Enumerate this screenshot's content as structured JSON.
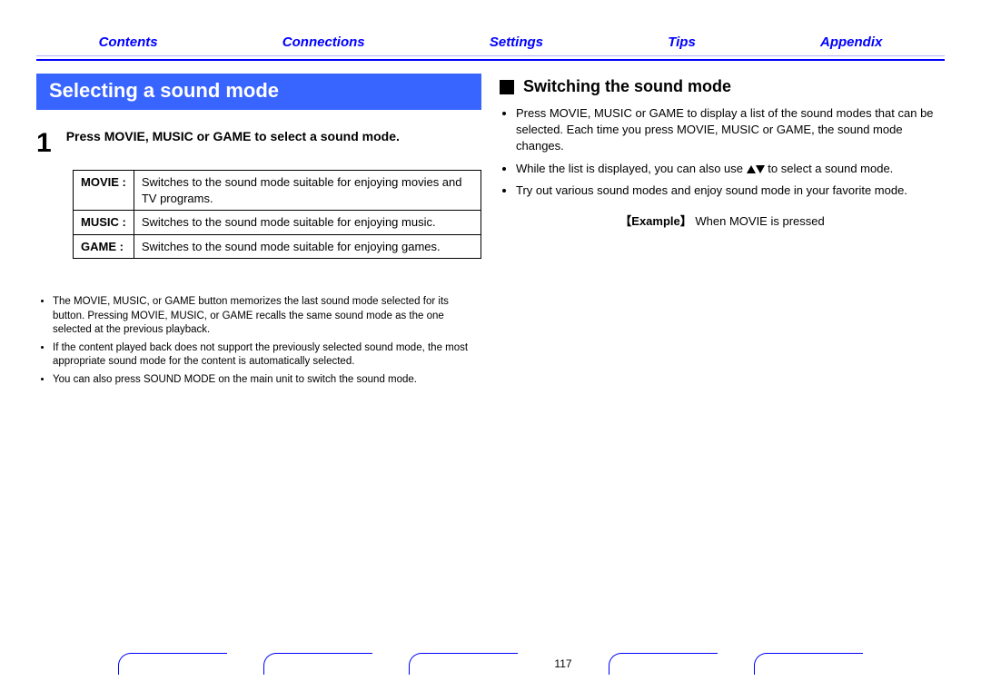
{
  "nav": {
    "items": [
      "Contents",
      "Connections",
      "Settings",
      "Tips",
      "Appendix"
    ],
    "color": "#0000ff"
  },
  "left": {
    "banner": "Selecting a sound mode",
    "step_num": "1",
    "step_text": "Press MOVIE, MUSIC or GAME to select a sound mode.",
    "modes": [
      {
        "key": "MOVIE :",
        "desc": "Switches to the sound mode suitable for enjoying movies and TV programs."
      },
      {
        "key": "MUSIC :",
        "desc": "Switches to the sound mode suitable for enjoying music."
      },
      {
        "key": "GAME :",
        "desc": "Switches to the sound mode suitable for enjoying games."
      }
    ],
    "notes": [
      "The MOVIE, MUSIC, or GAME button memorizes the last sound mode selected for its button. Pressing MOVIE, MUSIC, or GAME recalls the same sound mode as the one selected at the previous playback.",
      "If the content played back does not support the previously selected sound mode, the most appropriate sound mode for the content is automatically selected.",
      "You can also press SOUND MODE on the main unit to switch the sound mode."
    ]
  },
  "right": {
    "subhead": "Switching the sound mode",
    "bullets": [
      "Press MOVIE, MUSIC or GAME to display a list of the sound modes that can be selected. Each time you press MOVIE, MUSIC or GAME, the sound mode changes.",
      "While the list is displayed, you can also use △▽ to select a sound mode.",
      "Try out various sound modes and enjoy sound mode in your favorite mode."
    ],
    "example_label": "【Example】",
    "example_text": "When MOVIE is pressed"
  },
  "page": "117",
  "colors": {
    "banner_bg": "#3864ff",
    "banner_fg": "#ffffff",
    "rule": "#0000ff",
    "text": "#000000"
  }
}
